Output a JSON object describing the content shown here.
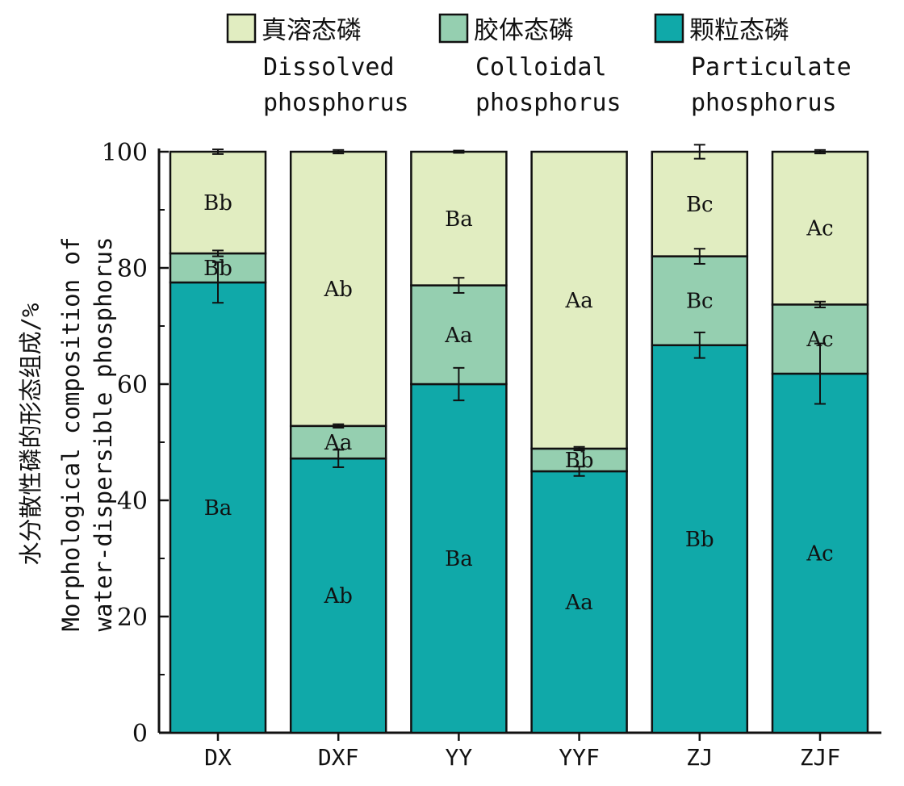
{
  "chart_data": {
    "type": "bar",
    "stacked": true,
    "categories": [
      "DX",
      "DXF",
      "YY",
      "YYF",
      "ZJ",
      "ZJF"
    ],
    "ylim": [
      0,
      100
    ],
    "yticks": [
      0,
      20,
      40,
      60,
      80,
      100
    ],
    "ytick_labels": [
      "0",
      "20",
      "40",
      "60",
      "80",
      "100"
    ],
    "ylabel_lines": [
      "水分散性磷的形态组成/%",
      "Morphological composition of",
      "water-dispersible phosphorus"
    ],
    "series": [
      {
        "name_cn": "颗粒态磷",
        "name_en": [
          "Particulate",
          "phosphorus"
        ],
        "color": "#10a9a9",
        "values": [
          77.5,
          47.2,
          60.0,
          45.0,
          66.7,
          61.8
        ],
        "errors": [
          3.5,
          1.5,
          2.8,
          0.8,
          2.2,
          5.2
        ],
        "labels": [
          "Ba",
          "Ab",
          "Ba",
          "Aa",
          "Bb",
          "Ac"
        ]
      },
      {
        "name_cn": "胶体态磷",
        "name_en": [
          "Colloidal",
          "phosphorus"
        ],
        "color": "#95cfb0",
        "values": [
          5.0,
          5.6,
          17.0,
          3.9,
          15.3,
          11.9
        ],
        "errors": [
          0.5,
          0.3,
          1.3,
          0.3,
          1.3,
          0.5
        ],
        "labels": [
          "Bb",
          "Aa",
          "Aa",
          "Bb",
          "Bc",
          "Ac"
        ]
      },
      {
        "name_cn": "真溶态磷",
        "name_en": [
          "Dissolved",
          "phosphorus"
        ],
        "color": "#e1edc1",
        "values": [
          17.5,
          47.2,
          23.0,
          51.1,
          18.0,
          26.3
        ],
        "errors": [
          0.4,
          0.3,
          0.2,
          0.0,
          1.2,
          0.3
        ],
        "labels": [
          "Bb",
          "Ab",
          "Ba",
          "Aa",
          "Bc",
          "Ac"
        ]
      }
    ]
  }
}
